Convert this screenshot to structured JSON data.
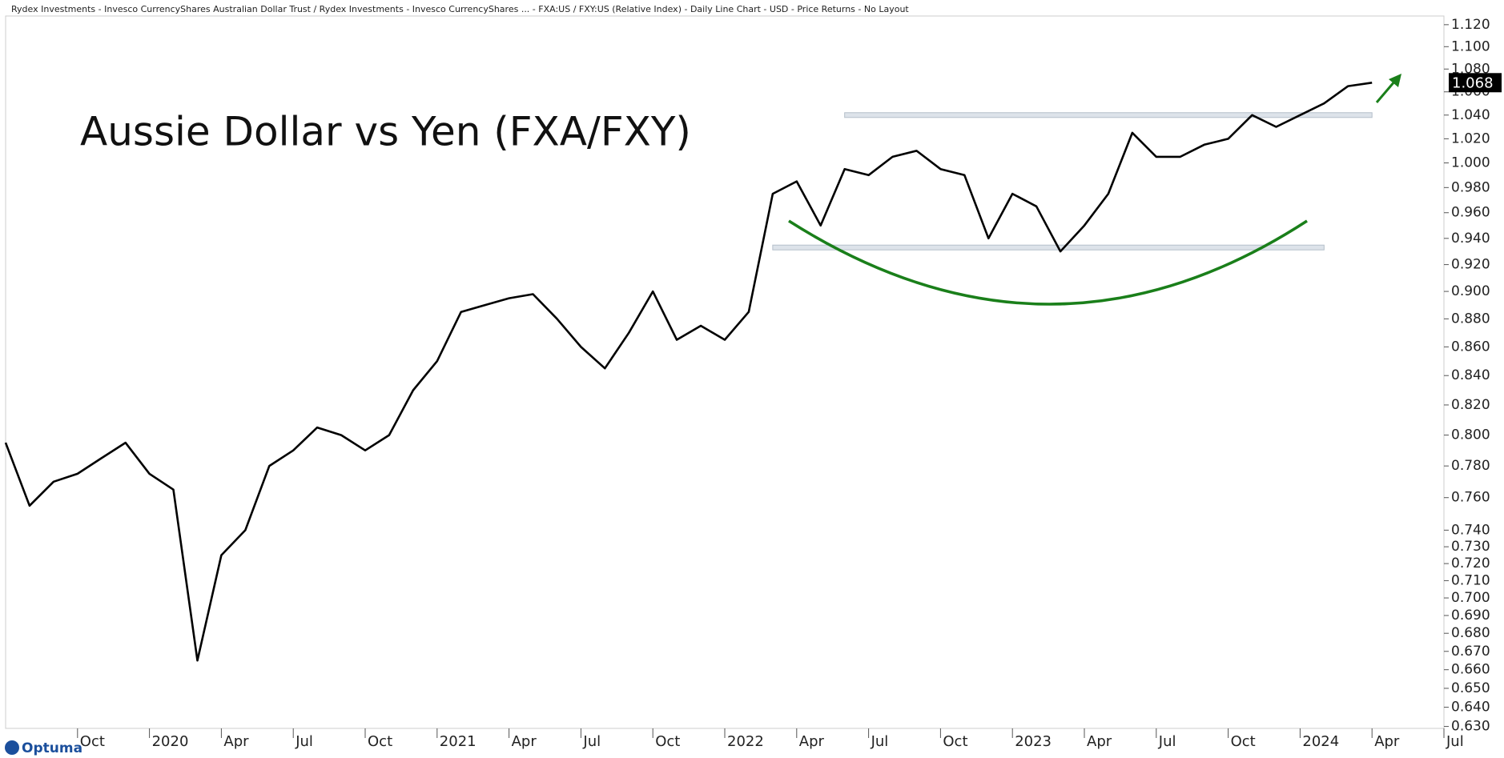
{
  "chart_data": {
    "type": "line",
    "header": "Rydex Investments - Invesco CurrencyShares Australian Dollar Trust / Rydex Investments - Invesco CurrencyShares ... - FXA:US / FXY:US (Relative Index) - Daily Line Chart - USD - Price Returns - No Layout",
    "title": "Aussie Dollar vs Yen (FXA/FXY)",
    "logo": "Optuma",
    "color": "#000000",
    "log_scale": true,
    "x": [
      "2019-07",
      "2019-08",
      "2019-09",
      "2019-10",
      "2019-11",
      "2019-12",
      "2020-01",
      "2020-02",
      "2020-03",
      "2020-04",
      "2020-05",
      "2020-06",
      "2020-07",
      "2020-08",
      "2020-09",
      "2020-10",
      "2020-11",
      "2020-12",
      "2021-01",
      "2021-02",
      "2021-03",
      "2021-04",
      "2021-05",
      "2021-06",
      "2021-07",
      "2021-08",
      "2021-09",
      "2021-10",
      "2021-11",
      "2021-12",
      "2022-01",
      "2022-02",
      "2022-03",
      "2022-04",
      "2022-05",
      "2022-06",
      "2022-07",
      "2022-08",
      "2022-09",
      "2022-10",
      "2022-11",
      "2022-12",
      "2023-01",
      "2023-02",
      "2023-03",
      "2023-04",
      "2023-05",
      "2023-06",
      "2023-07",
      "2023-08",
      "2023-09",
      "2023-10",
      "2023-11",
      "2023-12",
      "2024-01",
      "2024-02",
      "2024-03",
      "2024-04"
    ],
    "values": [
      0.795,
      0.755,
      0.77,
      0.775,
      0.785,
      0.795,
      0.775,
      0.765,
      0.665,
      0.725,
      0.74,
      0.78,
      0.79,
      0.805,
      0.8,
      0.79,
      0.8,
      0.83,
      0.85,
      0.885,
      0.89,
      0.895,
      0.898,
      0.88,
      0.86,
      0.845,
      0.87,
      0.9,
      0.865,
      0.875,
      0.865,
      0.885,
      0.975,
      0.985,
      0.95,
      0.995,
      0.99,
      1.005,
      1.01,
      0.995,
      0.99,
      0.94,
      0.975,
      0.965,
      0.93,
      0.95,
      0.975,
      1.025,
      1.005,
      1.005,
      1.015,
      1.02,
      1.04,
      1.03,
      1.04,
      1.05,
      1.065,
      1.068
    ],
    "last_label": {
      "value": 1.068,
      "label": "1.068"
    },
    "levels": [
      {
        "value": 1.04,
        "from": "2022-06",
        "to": "2024-04"
      },
      {
        "value": 0.933,
        "from": "2022-03",
        "to": "2024-02"
      }
    ],
    "xlim": [
      "2019-07",
      "2024-07"
    ],
    "xticks": [
      {
        "value": "2019-10",
        "label": "Oct"
      },
      {
        "value": "2020-01",
        "label": "2020"
      },
      {
        "value": "2020-04",
        "label": "Apr"
      },
      {
        "value": "2020-07",
        "label": "Jul"
      },
      {
        "value": "2020-10",
        "label": "Oct"
      },
      {
        "value": "2021-01",
        "label": "2021"
      },
      {
        "value": "2021-04",
        "label": "Apr"
      },
      {
        "value": "2021-07",
        "label": "Jul"
      },
      {
        "value": "2021-10",
        "label": "Oct"
      },
      {
        "value": "2022-01",
        "label": "2022"
      },
      {
        "value": "2022-04",
        "label": "Apr"
      },
      {
        "value": "2022-07",
        "label": "Jul"
      },
      {
        "value": "2022-10",
        "label": "Oct"
      },
      {
        "value": "2023-01",
        "label": "2023"
      },
      {
        "value": "2023-04",
        "label": "Apr"
      },
      {
        "value": "2023-07",
        "label": "Jul"
      },
      {
        "value": "2023-10",
        "label": "Oct"
      },
      {
        "value": "2024-01",
        "label": "2024"
      },
      {
        "value": "2024-04",
        "label": "Apr"
      },
      {
        "value": "2024-07",
        "label": "Jul"
      }
    ],
    "ylim": [
      0.629,
      1.128
    ],
    "yticks": [
      {
        "value": 0.63,
        "label": "0.630"
      },
      {
        "value": 0.64,
        "label": "0.640"
      },
      {
        "value": 0.65,
        "label": "0.650"
      },
      {
        "value": 0.66,
        "label": "0.660"
      },
      {
        "value": 0.67,
        "label": "0.670"
      },
      {
        "value": 0.68,
        "label": "0.680"
      },
      {
        "value": 0.69,
        "label": "0.690"
      },
      {
        "value": 0.7,
        "label": "0.700"
      },
      {
        "value": 0.71,
        "label": "0.710"
      },
      {
        "value": 0.72,
        "label": "0.720"
      },
      {
        "value": 0.73,
        "label": "0.730"
      },
      {
        "value": 0.74,
        "label": "0.740"
      },
      {
        "value": 0.76,
        "label": "0.760"
      },
      {
        "value": 0.78,
        "label": "0.780"
      },
      {
        "value": 0.8,
        "label": "0.800"
      },
      {
        "value": 0.82,
        "label": "0.820"
      },
      {
        "value": 0.84,
        "label": "0.840"
      },
      {
        "value": 0.86,
        "label": "0.860"
      },
      {
        "value": 0.88,
        "label": "0.880"
      },
      {
        "value": 0.9,
        "label": "0.900"
      },
      {
        "value": 0.92,
        "label": "0.920"
      },
      {
        "value": 0.94,
        "label": "0.940"
      },
      {
        "value": 0.96,
        "label": "0.960"
      },
      {
        "value": 0.98,
        "label": "0.980"
      },
      {
        "value": 1.0,
        "label": "1.000"
      },
      {
        "value": 1.02,
        "label": "1.020"
      },
      {
        "value": 1.04,
        "label": "1.040"
      },
      {
        "value": 1.06,
        "label": "1.060"
      },
      {
        "value": 1.08,
        "label": "1.080"
      },
      {
        "value": 1.1,
        "label": "1.100"
      },
      {
        "value": 1.12,
        "label": "1.120"
      }
    ]
  }
}
